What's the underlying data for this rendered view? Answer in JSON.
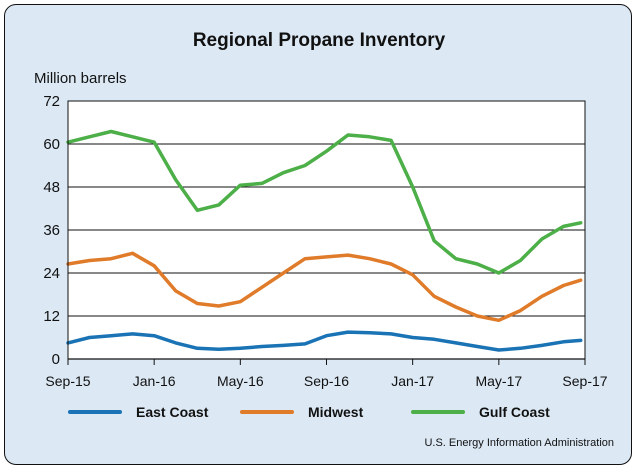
{
  "chart_data": {
    "type": "line",
    "title": "Regional Propane Inventory",
    "ylabel": "Million barrels",
    "xlabel": "",
    "ylim": [
      0,
      72
    ],
    "yticks": [
      "0",
      "12",
      "24",
      "36",
      "48",
      "60",
      "72"
    ],
    "xlim": [
      "2015-09",
      "2017-09"
    ],
    "xticks": [
      "Sep-15",
      "Jan-16",
      "May-16",
      "Sep-16",
      "Jan-17",
      "May-17",
      "Sep-17"
    ],
    "grid": true,
    "legend_position": "bottom",
    "x": [
      "2015-09-01",
      "2015-10-01",
      "2015-11-01",
      "2015-12-01",
      "2016-01-01",
      "2016-02-01",
      "2016-03-01",
      "2016-04-01",
      "2016-05-01",
      "2016-06-01",
      "2016-07-01",
      "2016-08-01",
      "2016-09-01",
      "2016-10-01",
      "2016-11-01",
      "2016-12-01",
      "2017-01-01",
      "2017-02-01",
      "2017-03-01",
      "2017-04-01",
      "2017-05-01",
      "2017-06-01",
      "2017-07-01",
      "2017-08-01",
      "2017-08-25"
    ],
    "series": [
      {
        "name": "East Coast",
        "color": "#1a73b5",
        "values": [
          4.5,
          6.0,
          6.5,
          7.0,
          6.5,
          4.5,
          3.0,
          2.7,
          3.0,
          3.5,
          3.8,
          4.2,
          6.5,
          7.5,
          7.3,
          7.0,
          6.0,
          5.5,
          4.5,
          3.5,
          2.5,
          3.0,
          3.8,
          4.8,
          5.2
        ]
      },
      {
        "name": "Midwest",
        "color": "#e07b2a",
        "values": [
          26.5,
          27.5,
          28.0,
          29.5,
          26.0,
          19.0,
          15.5,
          14.8,
          16.0,
          20.0,
          24.0,
          28.0,
          28.5,
          29.0,
          28.0,
          26.5,
          23.5,
          17.5,
          14.5,
          12.0,
          10.8,
          13.5,
          17.5,
          20.5,
          22.0
        ]
      },
      {
        "name": "Gulf Coast",
        "color": "#4caf48",
        "values": [
          60.5,
          62.0,
          63.5,
          62.0,
          60.5,
          50.0,
          41.5,
          43.0,
          48.5,
          49.0,
          52.0,
          54.0,
          58.0,
          62.5,
          62.0,
          61.0,
          48.0,
          33.0,
          28.0,
          26.5,
          24.0,
          27.5,
          33.5,
          37.0,
          38.0
        ]
      }
    ],
    "source": "U.S. Energy Information Administration"
  }
}
